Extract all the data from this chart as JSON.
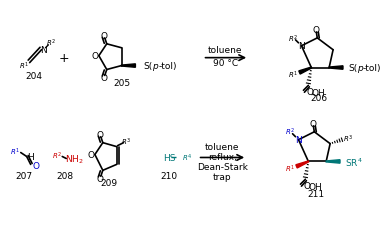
{
  "bg_color": "#ffffff",
  "text_color": "#000000",
  "blue_color": "#0000cc",
  "red_color": "#cc0000",
  "green_color": "#007777",
  "figsize": [
    3.84,
    2.28
  ],
  "dpi": 100,
  "top_reaction": {
    "arrow_text_line1": "toluene",
    "arrow_text_line2": "90 °C",
    "compound_204": "204",
    "compound_205": "205",
    "compound_206": "206"
  },
  "bottom_reaction": {
    "arrow_text_line1": "toluene",
    "arrow_text_line2": "reflux,",
    "arrow_text_line3": "Dean-Stark",
    "arrow_text_line4": "trap",
    "compound_207": "207",
    "compound_208": "208",
    "compound_209": "209",
    "compound_210": "210",
    "compound_211": "211"
  }
}
